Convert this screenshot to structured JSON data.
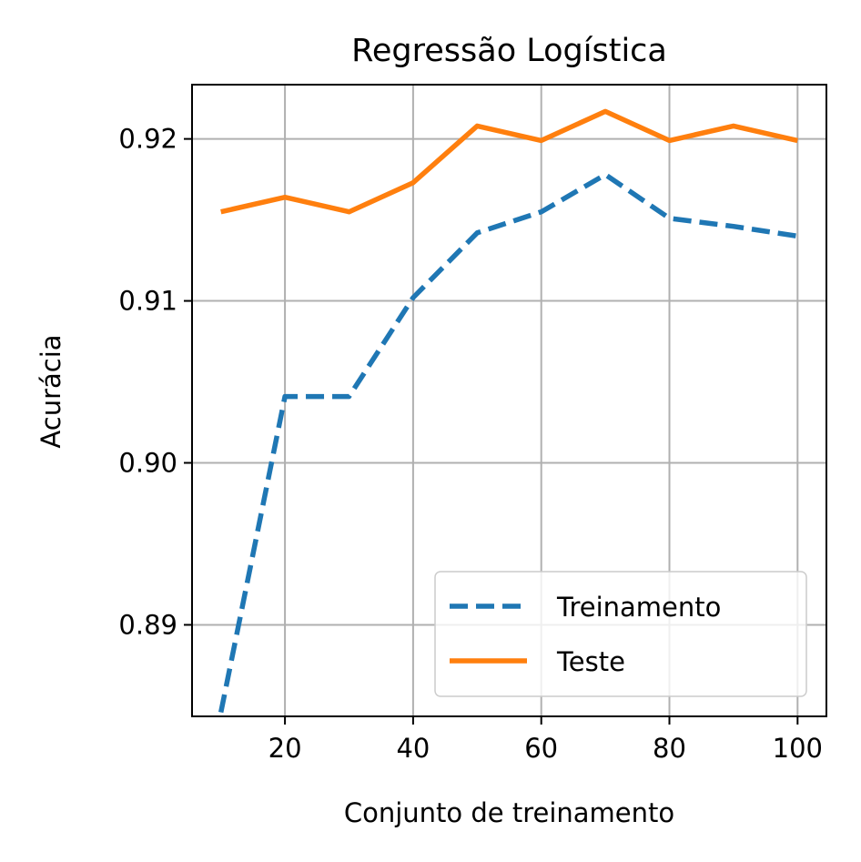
{
  "chart_data": {
    "type": "line",
    "title": "Regressão Logística",
    "xlabel": "Conjunto de treinamento",
    "ylabel": "Acurácia",
    "xlim": [
      5.5,
      104.5
    ],
    "ylim": [
      0.88435,
      0.92335
    ],
    "xticks": [
      20,
      40,
      60,
      80,
      100
    ],
    "xtick_labels": [
      "20",
      "40",
      "60",
      "80",
      "100"
    ],
    "yticks": [
      0.89,
      0.9,
      0.91,
      0.92
    ],
    "ytick_labels": [
      "0.89",
      "0.90",
      "0.91",
      "0.92"
    ],
    "grid": true,
    "legend_position": "lower right",
    "x": [
      10,
      20,
      30,
      40,
      50,
      60,
      70,
      80,
      90,
      100
    ],
    "series": [
      {
        "name": "Treinamento",
        "color": "#1f77b4",
        "style": "dashed",
        "values": [
          0.8846,
          0.9041,
          0.9041,
          0.9102,
          0.9142,
          0.9155,
          0.9178,
          0.9151,
          0.9146,
          0.914
        ]
      },
      {
        "name": "Teste",
        "color": "#ff7f0e",
        "style": "solid",
        "values": [
          0.9155,
          0.9164,
          0.9155,
          0.9173,
          0.9208,
          0.9199,
          0.9217,
          0.9199,
          0.9208,
          0.9199
        ]
      }
    ]
  }
}
